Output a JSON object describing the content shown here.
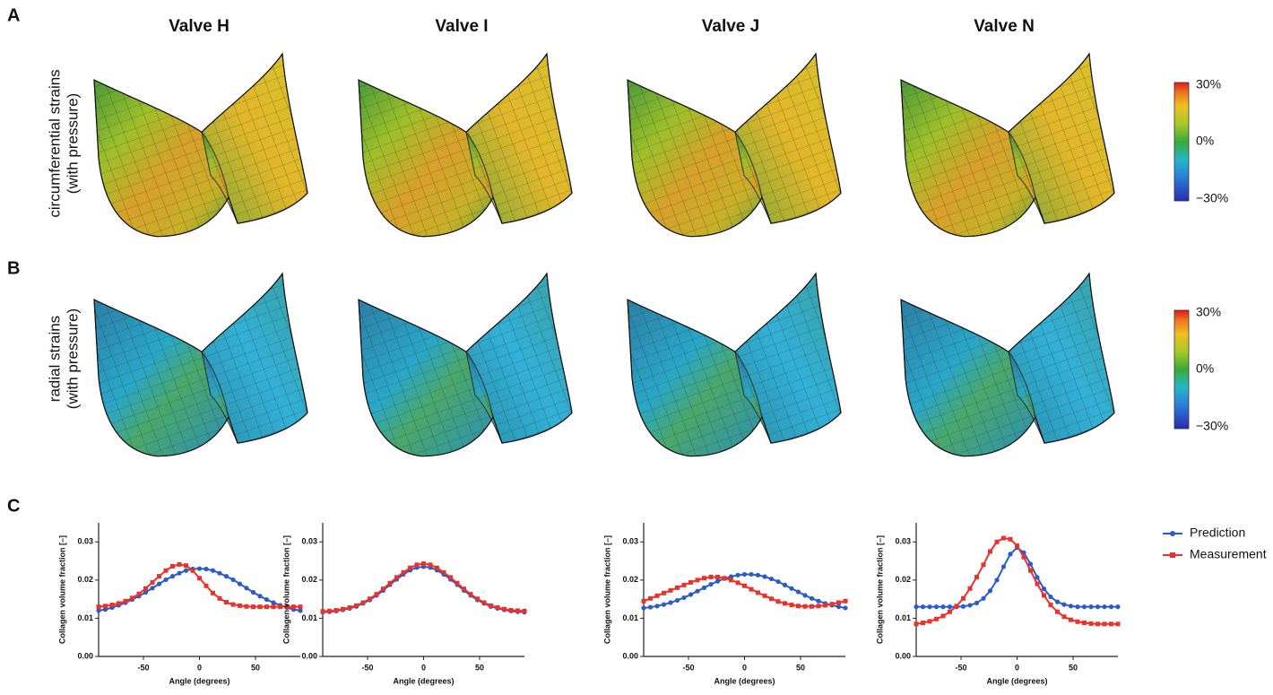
{
  "panels": [
    "A",
    "B",
    "C"
  ],
  "valves": [
    "Valve H",
    "Valve I",
    "Valve J",
    "Valve N"
  ],
  "rows": [
    {
      "label": [
        "circumferential strains",
        "(with pressure)"
      ],
      "colorbar": [
        "30%",
        "0%",
        "−30%"
      ]
    },
    {
      "label": [
        "radial strains",
        "(with pressure)"
      ],
      "colorbar": [
        "30%",
        "0%",
        "−30%"
      ]
    }
  ],
  "chart_data": [
    {
      "type": "line",
      "xlabel": "Angle (degrees)",
      "ylabel": "Collagen volume fraction [–]",
      "x": [
        -90,
        -84,
        -78,
        -72,
        -66,
        -60,
        -54,
        -48,
        -42,
        -36,
        -30,
        -24,
        -18,
        -12,
        -6,
        0,
        6,
        12,
        18,
        24,
        30,
        36,
        42,
        48,
        54,
        60,
        66,
        72,
        78,
        84,
        90
      ],
      "xlim": [
        -90,
        90
      ],
      "xticks": [
        -50,
        0,
        50
      ],
      "ylim": [
        0,
        0.035
      ],
      "yticks": [
        {
          "value": 0,
          "label": "0.00"
        },
        {
          "value": 0.01,
          "label": "0.01"
        },
        {
          "value": 0.02,
          "label": "0.02"
        },
        {
          "value": 0.03,
          "label": "0.03"
        }
      ],
      "grid": false,
      "series": [
        {
          "color": "#2a5cc8",
          "marker": "circle",
          "values": [
            0.012,
            0.0123,
            0.0128,
            0.0134,
            0.0141,
            0.0149,
            0.0158,
            0.0168,
            0.0179,
            0.019,
            0.0201,
            0.021,
            0.0218,
            0.0225,
            0.0229,
            0.023,
            0.0229,
            0.0225,
            0.0218,
            0.021,
            0.0201,
            0.019,
            0.0179,
            0.0168,
            0.0158,
            0.0149,
            0.0141,
            0.0134,
            0.0128,
            0.0123,
            0.012
          ]
        },
        {
          "color": "#e8322b",
          "marker": "square",
          "values": [
            0.013,
            0.0132,
            0.0135,
            0.0139,
            0.0145,
            0.0153,
            0.0164,
            0.0178,
            0.0194,
            0.021,
            0.0225,
            0.0236,
            0.0241,
            0.0238,
            0.0225,
            0.0205,
            0.0185,
            0.0166,
            0.0152,
            0.0142,
            0.0136,
            0.0133,
            0.0131,
            0.013,
            0.013,
            0.013,
            0.013,
            0.013,
            0.013,
            0.013,
            0.013
          ]
        }
      ]
    },
    {
      "type": "line",
      "xlabel": "Angle (degrees)",
      "ylabel": "Collagen volume fraction [–]",
      "x": [
        -90,
        -84,
        -78,
        -72,
        -66,
        -60,
        -54,
        -48,
        -42,
        -36,
        -30,
        -24,
        -18,
        -12,
        -6,
        0,
        6,
        12,
        18,
        24,
        30,
        36,
        42,
        48,
        54,
        60,
        66,
        72,
        78,
        84,
        90
      ],
      "xlim": [
        -90,
        90
      ],
      "xticks": [
        -50,
        0,
        50
      ],
      "ylim": [
        0,
        0.035
      ],
      "yticks": [
        {
          "value": 0,
          "label": "0.00"
        },
        {
          "value": 0.01,
          "label": "0.01"
        },
        {
          "value": 0.02,
          "label": "0.02"
        },
        {
          "value": 0.03,
          "label": "0.03"
        }
      ],
      "grid": false,
      "series": [
        {
          "color": "#2a5cc8",
          "marker": "circle",
          "values": [
            0.0116,
            0.0117,
            0.0119,
            0.0122,
            0.0126,
            0.0131,
            0.0139,
            0.0148,
            0.016,
            0.0173,
            0.0188,
            0.0202,
            0.0215,
            0.0226,
            0.0233,
            0.0235,
            0.0233,
            0.0226,
            0.0215,
            0.0202,
            0.0188,
            0.0173,
            0.016,
            0.0148,
            0.0139,
            0.0131,
            0.0126,
            0.0122,
            0.0119,
            0.0117,
            0.0116
          ]
        },
        {
          "color": "#e8322b",
          "marker": "square",
          "values": [
            0.0118,
            0.0119,
            0.0121,
            0.0124,
            0.0128,
            0.0133,
            0.0141,
            0.0151,
            0.0163,
            0.0177,
            0.0192,
            0.0207,
            0.022,
            0.0232,
            0.024,
            0.0243,
            0.024,
            0.0232,
            0.022,
            0.0207,
            0.0192,
            0.0177,
            0.0163,
            0.0151,
            0.0141,
            0.0133,
            0.0128,
            0.0124,
            0.0121,
            0.012,
            0.0119
          ]
        }
      ]
    },
    {
      "type": "line",
      "xlabel": "Angle (degrees)",
      "ylabel": "Collagen volume fraction [–]",
      "x": [
        -90,
        -84,
        -78,
        -72,
        -66,
        -60,
        -54,
        -48,
        -42,
        -36,
        -30,
        -24,
        -18,
        -12,
        -6,
        0,
        6,
        12,
        18,
        24,
        30,
        36,
        42,
        48,
        54,
        60,
        66,
        72,
        78,
        84,
        90
      ],
      "xlim": [
        -90,
        90
      ],
      "xticks": [
        -50,
        0,
        50
      ],
      "ylim": [
        0,
        0.035
      ],
      "yticks": [
        {
          "value": 0,
          "label": "0.00"
        },
        {
          "value": 0.01,
          "label": "0.01"
        },
        {
          "value": 0.02,
          "label": "0.02"
        },
        {
          "value": 0.03,
          "label": "0.03"
        }
      ],
      "grid": false,
      "series": [
        {
          "color": "#2a5cc8",
          "marker": "circle",
          "values": [
            0.0127,
            0.0129,
            0.0132,
            0.0136,
            0.0141,
            0.0147,
            0.0154,
            0.0162,
            0.0171,
            0.018,
            0.0189,
            0.0197,
            0.0204,
            0.0209,
            0.0213,
            0.0215,
            0.0215,
            0.0213,
            0.0209,
            0.0203,
            0.0196,
            0.0187,
            0.0178,
            0.0169,
            0.016,
            0.0152,
            0.0145,
            0.0139,
            0.0134,
            0.013,
            0.0127
          ]
        },
        {
          "color": "#e8322b",
          "marker": "square",
          "values": [
            0.0145,
            0.0152,
            0.0159,
            0.0166,
            0.0173,
            0.018,
            0.0187,
            0.0194,
            0.02,
            0.0205,
            0.0208,
            0.0208,
            0.0205,
            0.02,
            0.0193,
            0.0185,
            0.0176,
            0.0167,
            0.0159,
            0.0151,
            0.0144,
            0.0139,
            0.0135,
            0.0132,
            0.0131,
            0.0131,
            0.0132,
            0.0134,
            0.0137,
            0.0141,
            0.0145
          ]
        }
      ]
    },
    {
      "type": "line",
      "xlabel": "Angle (degrees)",
      "ylabel": "Collagen volume fraction [–]",
      "x": [
        -90,
        -84,
        -78,
        -72,
        -66,
        -60,
        -54,
        -48,
        -42,
        -36,
        -30,
        -24,
        -18,
        -12,
        -6,
        0,
        6,
        12,
        18,
        24,
        30,
        36,
        42,
        48,
        54,
        60,
        66,
        72,
        78,
        84,
        90
      ],
      "xlim": [
        -90,
        90
      ],
      "xticks": [
        -50,
        0,
        50
      ],
      "ylim": [
        0,
        0.035
      ],
      "yticks": [
        {
          "value": 0,
          "label": "0.00"
        },
        {
          "value": 0.01,
          "label": "0.01"
        },
        {
          "value": 0.02,
          "label": "0.02"
        },
        {
          "value": 0.03,
          "label": "0.03"
        }
      ],
      "grid": false,
      "legend": "right",
      "series": [
        {
          "name": "Prediction",
          "color": "#2a5cc8",
          "marker": "circle",
          "values": [
            0.013,
            0.013,
            0.013,
            0.013,
            0.013,
            0.013,
            0.013,
            0.0131,
            0.0134,
            0.014,
            0.0152,
            0.0172,
            0.02,
            0.0235,
            0.0268,
            0.0285,
            0.0272,
            0.0242,
            0.0207,
            0.0177,
            0.0156,
            0.0143,
            0.0136,
            0.0132,
            0.013,
            0.013,
            0.013,
            0.013,
            0.013,
            0.013,
            0.013
          ]
        },
        {
          "name": "Measurement",
          "color": "#e8322b",
          "marker": "square",
          "values": [
            0.0085,
            0.0088,
            0.0092,
            0.0098,
            0.0106,
            0.0117,
            0.0132,
            0.0152,
            0.0178,
            0.0208,
            0.024,
            0.0275,
            0.03,
            0.031,
            0.0307,
            0.029,
            0.026,
            0.0225,
            0.019,
            0.016,
            0.0135,
            0.0117,
            0.0104,
            0.0096,
            0.0091,
            0.0088,
            0.0086,
            0.0085,
            0.0085,
            0.0085,
            0.0085
          ]
        }
      ]
    }
  ]
}
